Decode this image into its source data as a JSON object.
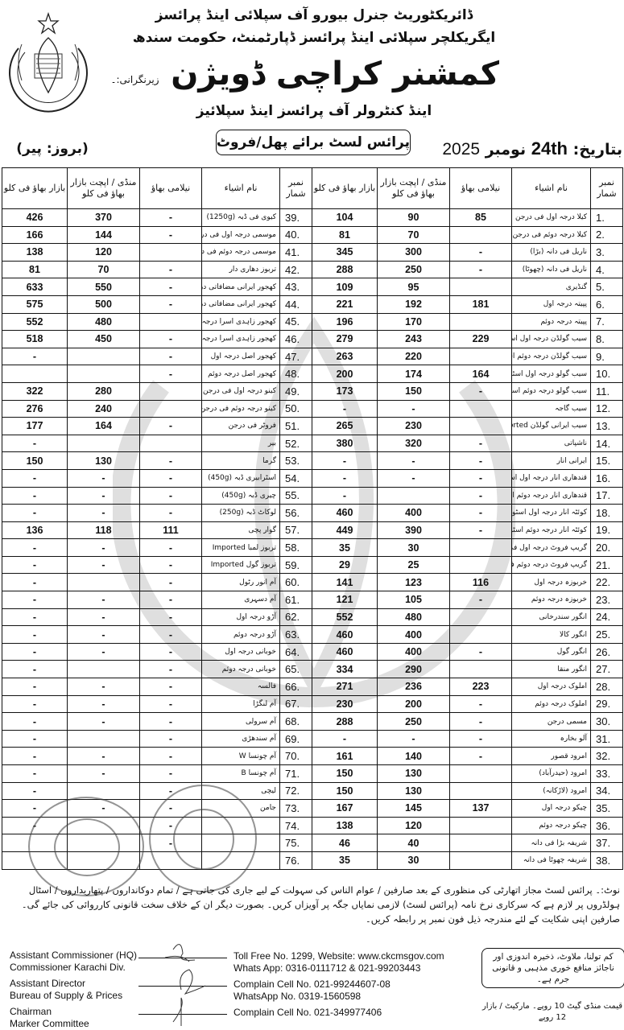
{
  "header": {
    "line1": "ڈائریکٹوریٹ جنرل بیورو آف سپلائی اینڈ پرائسز",
    "line2": "ایگریکلچر سپلائی اینڈ پرائسز ڈپارٹمنٹ، حکومت سندھ",
    "supervision_label": "زیرنگرانی:۔",
    "main_title": "کمشنر کراچی ڈویژن",
    "subtitle": "اینڈ کنٹرولر آف پرائسز اینڈ سپلائیز",
    "list_title": "پرائس لسٹ برائے پھل/فروٹ",
    "day": "(بروز: پیر)",
    "date_label": "بتاریخ:",
    "date_day": "24th",
    "date_month": "نومبر",
    "date_year": "2025"
  },
  "columns": {
    "serial": "نمبر شمار",
    "item": "نام اشیاء",
    "auction": "نیلامی بھاؤ",
    "mandi": "منڈی / اپچت بازار بھاؤ فی کلو",
    "bazaar": "بازار بھاؤ فی کلو"
  },
  "right_rows": [
    {
      "sn": "1.",
      "item": "کیلا درجہ اول فی درجن",
      "auction": "85",
      "mandi": "90",
      "bazaar": "104"
    },
    {
      "sn": "2.",
      "item": "کیلا درجہ دوئم فی درجن",
      "auction": "",
      "mandi": "70",
      "bazaar": "81"
    },
    {
      "sn": "3.",
      "item": "ناریل فی دانہ (بڑا)",
      "auction": "-",
      "mandi": "300",
      "bazaar": "345"
    },
    {
      "sn": "4.",
      "item": "ناریل فی دانہ (چھوٹا)",
      "auction": "-",
      "mandi": "250",
      "bazaar": "288"
    },
    {
      "sn": "5.",
      "item": "گنڈیری",
      "auction": "",
      "mandi": "95",
      "bazaar": "109"
    },
    {
      "sn": "6.",
      "item": "پپیتہ درجہ اول",
      "auction": "181",
      "mandi": "192",
      "bazaar": "221"
    },
    {
      "sn": "7.",
      "item": "پپیتہ درجہ دوئم",
      "auction": "",
      "mandi": "170",
      "bazaar": "196"
    },
    {
      "sn": "8.",
      "item": "سیب گولڈن درجہ اول اسٹور",
      "auction": "229",
      "mandi": "243",
      "bazaar": "279"
    },
    {
      "sn": "9.",
      "item": "سیب گولڈن درجہ دوئم اسٹور",
      "auction": "",
      "mandi": "220",
      "bazaar": "263"
    },
    {
      "sn": "10.",
      "item": "سیب گولو درجہ اول اسٹور",
      "auction": "164",
      "mandi": "174",
      "bazaar": "200"
    },
    {
      "sn": "11.",
      "item": "سیب گولو درجہ دوئم اسٹور",
      "auction": "-",
      "mandi": "150",
      "bazaar": "173"
    },
    {
      "sn": "12.",
      "item": "سیب گاجہ",
      "auction": "",
      "mandi": "-",
      "bazaar": "-"
    },
    {
      "sn": "13.",
      "item": "سیب ایرانی گولڈن Imported",
      "auction": "",
      "mandi": "230",
      "bazaar": "265"
    },
    {
      "sn": "14.",
      "item": "ناشپاتی",
      "auction": "-",
      "mandi": "320",
      "bazaar": "380"
    },
    {
      "sn": "15.",
      "item": "ایرانی انار",
      "auction": "-",
      "mandi": "-",
      "bazaar": "-"
    },
    {
      "sn": "16.",
      "item": "قندھاری انار درجہ اول اسٹور",
      "auction": "-",
      "mandi": "-",
      "bazaar": "-"
    },
    {
      "sn": "17.",
      "item": "قندھاری انار درجہ دوئم اسٹور",
      "auction": "-",
      "mandi": "",
      "bazaar": "-"
    },
    {
      "sn": "18.",
      "item": "کوئٹہ انار درجہ اول اسٹور",
      "auction": "-",
      "mandi": "400",
      "bazaar": "460"
    },
    {
      "sn": "19.",
      "item": "کوئٹہ انار درجہ دوئم اسٹور",
      "auction": "-",
      "mandi": "390",
      "bazaar": "449"
    },
    {
      "sn": "20.",
      "item": "گریپ فروٹ درجہ اول فی دانہ",
      "auction": "",
      "mandi": "30",
      "bazaar": "35"
    },
    {
      "sn": "21.",
      "item": "گریپ فروٹ درجہ دوئم فی دانہ",
      "auction": "",
      "mandi": "25",
      "bazaar": "29"
    },
    {
      "sn": "22.",
      "item": "خربوزہ درجہ اول",
      "auction": "116",
      "mandi": "123",
      "bazaar": "141"
    },
    {
      "sn": "23.",
      "item": "خربوزہ درجہ دوئم",
      "auction": "-",
      "mandi": "105",
      "bazaar": "121"
    },
    {
      "sn": "24.",
      "item": "انگور سندرخانی",
      "auction": "",
      "mandi": "480",
      "bazaar": "552"
    },
    {
      "sn": "25.",
      "item": "انگور کالا",
      "auction": "",
      "mandi": "400",
      "bazaar": "460"
    },
    {
      "sn": "26.",
      "item": "انگور گول",
      "auction": "-",
      "mandi": "400",
      "bazaar": "460"
    },
    {
      "sn": "27.",
      "item": "انگور منقا",
      "auction": "",
      "mandi": "290",
      "bazaar": "334"
    },
    {
      "sn": "28.",
      "item": "املوک درجہ اول",
      "auction": "223",
      "mandi": "236",
      "bazaar": "271"
    },
    {
      "sn": "29.",
      "item": "املوک درجہ دوئم",
      "auction": "-",
      "mandi": "200",
      "bazaar": "230"
    },
    {
      "sn": "30.",
      "item": "مسمی درجن",
      "auction": "-",
      "mandi": "250",
      "bazaar": "288"
    },
    {
      "sn": "31.",
      "item": "آلو بخارہ",
      "auction": "-",
      "mandi": "-",
      "bazaar": "-"
    },
    {
      "sn": "32.",
      "item": "امرود قصور",
      "auction": "-",
      "mandi": "140",
      "bazaar": "161"
    },
    {
      "sn": "33.",
      "item": "امرود (حیدرآباد)",
      "auction": "",
      "mandi": "130",
      "bazaar": "150"
    },
    {
      "sn": "34.",
      "item": "امرود (لاڑکانہ)",
      "auction": "",
      "mandi": "130",
      "bazaar": "150"
    },
    {
      "sn": "35.",
      "item": "چیکو درجہ اول",
      "auction": "137",
      "mandi": "145",
      "bazaar": "167"
    },
    {
      "sn": "36.",
      "item": "چیکو درجہ دوئم",
      "auction": "",
      "mandi": "120",
      "bazaar": "138"
    },
    {
      "sn": "37.",
      "item": "شریفہ بڑا فی دانہ",
      "auction": "",
      "mandi": "40",
      "bazaar": "46"
    },
    {
      "sn": "38.",
      "item": "شریفہ چھوٹا فی دانہ",
      "auction": "",
      "mandi": "30",
      "bazaar": "35"
    }
  ],
  "left_rows": [
    {
      "sn": "39.",
      "item": "کیوی فی ڈبہ (1250g)",
      "auction": "-",
      "mandi": "370",
      "bazaar": "426"
    },
    {
      "sn": "40.",
      "item": "موسمی درجہ اول فی درجن",
      "auction": "-",
      "mandi": "144",
      "bazaar": "166"
    },
    {
      "sn": "41.",
      "item": "موسمی درجہ دوئم فی درجن",
      "auction": "",
      "mandi": "120",
      "bazaar": "138"
    },
    {
      "sn": "42.",
      "item": "تربوز دھاری دار",
      "auction": "-",
      "mandi": "70",
      "bazaar": "81"
    },
    {
      "sn": "43.",
      "item": "کھجور ایرانی مضافاتی درجہ اول",
      "auction": "-",
      "mandi": "550",
      "bazaar": "633"
    },
    {
      "sn": "44.",
      "item": "کھجور ایرانی مضافاتی درجہ دوئم",
      "auction": "-",
      "mandi": "500",
      "bazaar": "575"
    },
    {
      "sn": "45.",
      "item": "کھجور زاہدی اسرا درجہ اول",
      "auction": "",
      "mandi": "480",
      "bazaar": "552"
    },
    {
      "sn": "46.",
      "item": "کھجور زاہدی اسرا درجہ دوئم",
      "auction": "-",
      "mandi": "450",
      "bazaar": "518"
    },
    {
      "sn": "47.",
      "item": "کھجور اصل درجہ اول",
      "auction": "-",
      "mandi": "",
      "bazaar": "-"
    },
    {
      "sn": "48.",
      "item": "کھجور اصل درجہ دوئم",
      "auction": "-",
      "mandi": "",
      "bazaar": ""
    },
    {
      "sn": "49.",
      "item": "کینو درجہ اول فی درجن",
      "auction": "",
      "mandi": "280",
      "bazaar": "322"
    },
    {
      "sn": "50.",
      "item": "کینو درجہ دوئم فی درجن",
      "auction": "",
      "mandi": "240",
      "bazaar": "276"
    },
    {
      "sn": "51.",
      "item": "فروٹر فی درجن",
      "auction": "-",
      "mandi": "164",
      "bazaar": "177"
    },
    {
      "sn": "52.",
      "item": "بیر",
      "auction": "",
      "mandi": "",
      "bazaar": "-"
    },
    {
      "sn": "53.",
      "item": "گرما",
      "auction": "-",
      "mandi": "130",
      "bazaar": "150"
    },
    {
      "sn": "54.",
      "item": "اسٹرابیری ڈبہ (450g)",
      "auction": "-",
      "mandi": "-",
      "bazaar": "-"
    },
    {
      "sn": "55.",
      "item": "چیری ڈبہ (450g)",
      "auction": "-",
      "mandi": "-",
      "bazaar": "-"
    },
    {
      "sn": "56.",
      "item": "لوکاٹ ڈبہ (250g)",
      "auction": "-",
      "mandi": "-",
      "bazaar": "-"
    },
    {
      "sn": "57.",
      "item": "گوار پچی",
      "auction": "111",
      "mandi": "118",
      "bazaar": "136"
    },
    {
      "sn": "58.",
      "item": "تربوز لمبا Imported",
      "auction": "-",
      "mandi": "-",
      "bazaar": "-"
    },
    {
      "sn": "59.",
      "item": "تربوز گول Imported",
      "auction": "-",
      "mandi": "-",
      "bazaar": "-"
    },
    {
      "sn": "60.",
      "item": "آم انور رٹول",
      "auction": "-",
      "mandi": "",
      "bazaar": "-"
    },
    {
      "sn": "61.",
      "item": "آم دسہری",
      "auction": "-",
      "mandi": "-",
      "bazaar": "-"
    },
    {
      "sn": "62.",
      "item": "آڑو درجہ اول",
      "auction": "-",
      "mandi": "-",
      "bazaar": "-"
    },
    {
      "sn": "63.",
      "item": "آڑو درجہ دوئم",
      "auction": "-",
      "mandi": "-",
      "bazaar": "-"
    },
    {
      "sn": "64.",
      "item": "خوبانی درجہ اول",
      "auction": "-",
      "mandi": "-",
      "bazaar": "-"
    },
    {
      "sn": "65.",
      "item": "خوبانی درجہ دوئم",
      "auction": "-",
      "mandi": "",
      "bazaar": "-"
    },
    {
      "sn": "66.",
      "item": "فالسہ",
      "auction": "-",
      "mandi": "-",
      "bazaar": "-"
    },
    {
      "sn": "67.",
      "item": "آم لنگڑا",
      "auction": "-",
      "mandi": "-",
      "bazaar": "-"
    },
    {
      "sn": "68.",
      "item": "آم سرولی",
      "auction": "-",
      "mandi": "-",
      "bazaar": "-"
    },
    {
      "sn": "69.",
      "item": "آم سندھڑی",
      "auction": "-",
      "mandi": "",
      "bazaar": "-"
    },
    {
      "sn": "70.",
      "item": "آم چونسا W",
      "auction": "-",
      "mandi": "-",
      "bazaar": "-"
    },
    {
      "sn": "71.",
      "item": "آم چونسا B",
      "auction": "-",
      "mandi": "-",
      "bazaar": "-"
    },
    {
      "sn": "72.",
      "item": "لیچی",
      "auction": "-",
      "mandi": "",
      "bazaar": "-"
    },
    {
      "sn": "73.",
      "item": "جامن",
      "auction": "-",
      "mandi": "-",
      "bazaar": "-"
    },
    {
      "sn": "74.",
      "item": "",
      "auction": "-",
      "mandi": "",
      "bazaar": "-"
    },
    {
      "sn": "75.",
      "item": "",
      "auction": "-",
      "mandi": "",
      "bazaar": ""
    },
    {
      "sn": "76.",
      "item": "",
      "auction": "",
      "mandi": "",
      "bazaar": ""
    }
  ],
  "note": {
    "line1": "نوٹ:۔ پرائس لسٹ مجاز اتھارٹی کی منظوری کے بعد صارفین / عوام الناس کی سہولت کے لیے جاری کی جاتی ہے / تمام دوکانداروں / پتھاریداروں / اسٹال ہولڈروں پر لازم ہے کہ سرکاری نرخ",
    "line2": "نامہ (پرائس لسٹ) لازمی نمایاں جگہ پر آویزاں کریں۔ بصورت دیگر ان کے خلاف سخت قانونی کارروائی کی جائے گی۔ صارفین اپنی شکایت کے لئے مندرجہ ذیل فون نمبر پر رابطہ کریں۔"
  },
  "signatories": [
    {
      "line1": "Assistant Commissioner (HQ)",
      "line2": "Commissioner Karachi Div."
    },
    {
      "line1": "Assistant Director",
      "line2": "Bureau of Supply & Prices"
    },
    {
      "line1": "Chairman",
      "line2": "Marker Committee"
    }
  ],
  "contacts": {
    "toll_free": "Toll Free No. 1299, Website: www.ckcmsgov.com",
    "whatsapp": "Whats App: 0316-0111712 & 021-99203443",
    "complain1": "Complain Cell No. 021-99244607-08",
    "whatsapp2": "WhatsApp No. 0319-1560598",
    "complain2": "Complain Cell No. 021-349977406"
  },
  "warning_box": {
    "line1": "کم تولنا، ملاوٹ، ذخیرہ اندوزی اور",
    "line2": "ناجائز منافع خوری مذہبی و قانونی جرم ہے۔"
  },
  "price_of_list": "قیمت منڈی گیٹ 10 روپے۔ مارکیٹ / بازار 12 روپے",
  "stamps": {
    "left": "Assistant Commissioner (HQ) Commissioner Office Karachi Division",
    "right": "DIRECTORATE GENERAL BUREAU OF SUPPLY & PRICES"
  }
}
